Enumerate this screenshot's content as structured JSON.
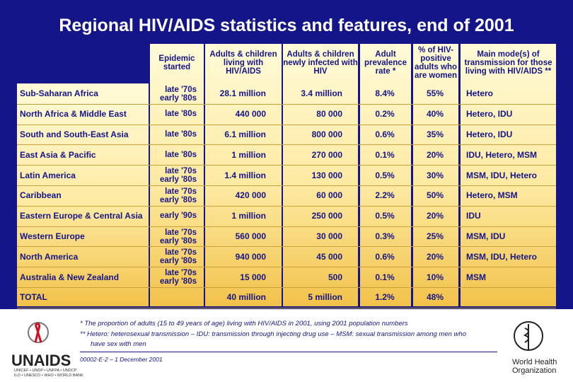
{
  "title": "Regional HIV/AIDS statistics and features, end of 2001",
  "headers": [
    "Epidemic started",
    "Adults & children living with HIV/AIDS",
    "Adults & children newly  infected with HIV",
    "Adult prevalence rate *",
    "% of HIV-positive adults who are women",
    "Main mode(s) of transmission for those living with HIV/AIDS **"
  ],
  "rows": [
    {
      "region": "Sub-Saharan Africa",
      "started": [
        "late '70s",
        "early '80s"
      ],
      "living": "28.1  million",
      "new": "3.4  million",
      "prevalence": "8.4%",
      "women": "55%",
      "mode": "Hetero"
    },
    {
      "region": "North Africa & Middle East",
      "started": [
        "late '80s"
      ],
      "living": "440 000",
      "new": "80 000",
      "prevalence": "0.2%",
      "women": "40%",
      "mode": "Hetero, IDU"
    },
    {
      "region": "South and South-East Asia",
      "started": [
        "late '80s"
      ],
      "living": "6.1  million",
      "new": "800 000",
      "prevalence": "0.6%",
      "women": "35%",
      "mode": "Hetero, IDU"
    },
    {
      "region": "East Asia & Pacific",
      "started": [
        "late '80s"
      ],
      "living": "1 million",
      "new": "270 000",
      "prevalence": "0.1%",
      "women": "20%",
      "mode": "IDU, Hetero, MSM"
    },
    {
      "region": "Latin America",
      "started": [
        "late '70s",
        "early '80s"
      ],
      "living": "1.4 million",
      "new": "130 000",
      "prevalence": "0.5%",
      "women": "30%",
      "mode": "MSM, IDU, Hetero"
    },
    {
      "region": "Caribbean",
      "started": [
        "late '70s",
        "early '80s"
      ],
      "living": "420 000",
      "new": "60 000",
      "prevalence": "2.2%",
      "women": "50%",
      "mode": "Hetero, MSM"
    },
    {
      "region": "Eastern Europe & Central Asia",
      "started": [
        "early '90s"
      ],
      "living": "1 million",
      "new": "250 000",
      "prevalence": "0.5%",
      "women": "20%",
      "mode": "IDU"
    },
    {
      "region": "Western Europe",
      "started": [
        "late '70s",
        "early '80s"
      ],
      "living": "560 000",
      "new": "30 000",
      "prevalence": "0.3%",
      "women": "25%",
      "mode": "MSM, IDU"
    },
    {
      "region": "North America",
      "started": [
        "late '70s",
        "early '80s"
      ],
      "living": "940 000",
      "new": "45 000",
      "prevalence": "0.6%",
      "women": "20%",
      "mode": "MSM, IDU, Hetero"
    },
    {
      "region": "Australia & New Zealand",
      "started": [
        "late '70s",
        "early '80s"
      ],
      "living": "15 000",
      "new": "500",
      "prevalence": "0.1%",
      "women": "10%",
      "mode": "MSM"
    }
  ],
  "total": {
    "region": "TOTAL",
    "living": "40 million",
    "new": "5 million",
    "prevalence": "1.2%",
    "women": "48%"
  },
  "footnotes": [
    "*   The proportion of adults (15 to 49 years of age) living with HIV/AIDS in 2001, using 2001 population numbers",
    "**  Hetero: heterosexual transmission – IDU: transmission through injecting drug use – MSM: sexual transmission among men who",
    "have sex with men"
  ],
  "code": "00002-E-2 – 1 December 2001",
  "unaids": {
    "name": "UNAIDS",
    "line1": "UNICEF • UNDP • UNFPA • UNDCP",
    "line2": "ILO • UNESCO • WHO • WORLD BANK"
  },
  "who": [
    "World Health",
    "Organization"
  ]
}
